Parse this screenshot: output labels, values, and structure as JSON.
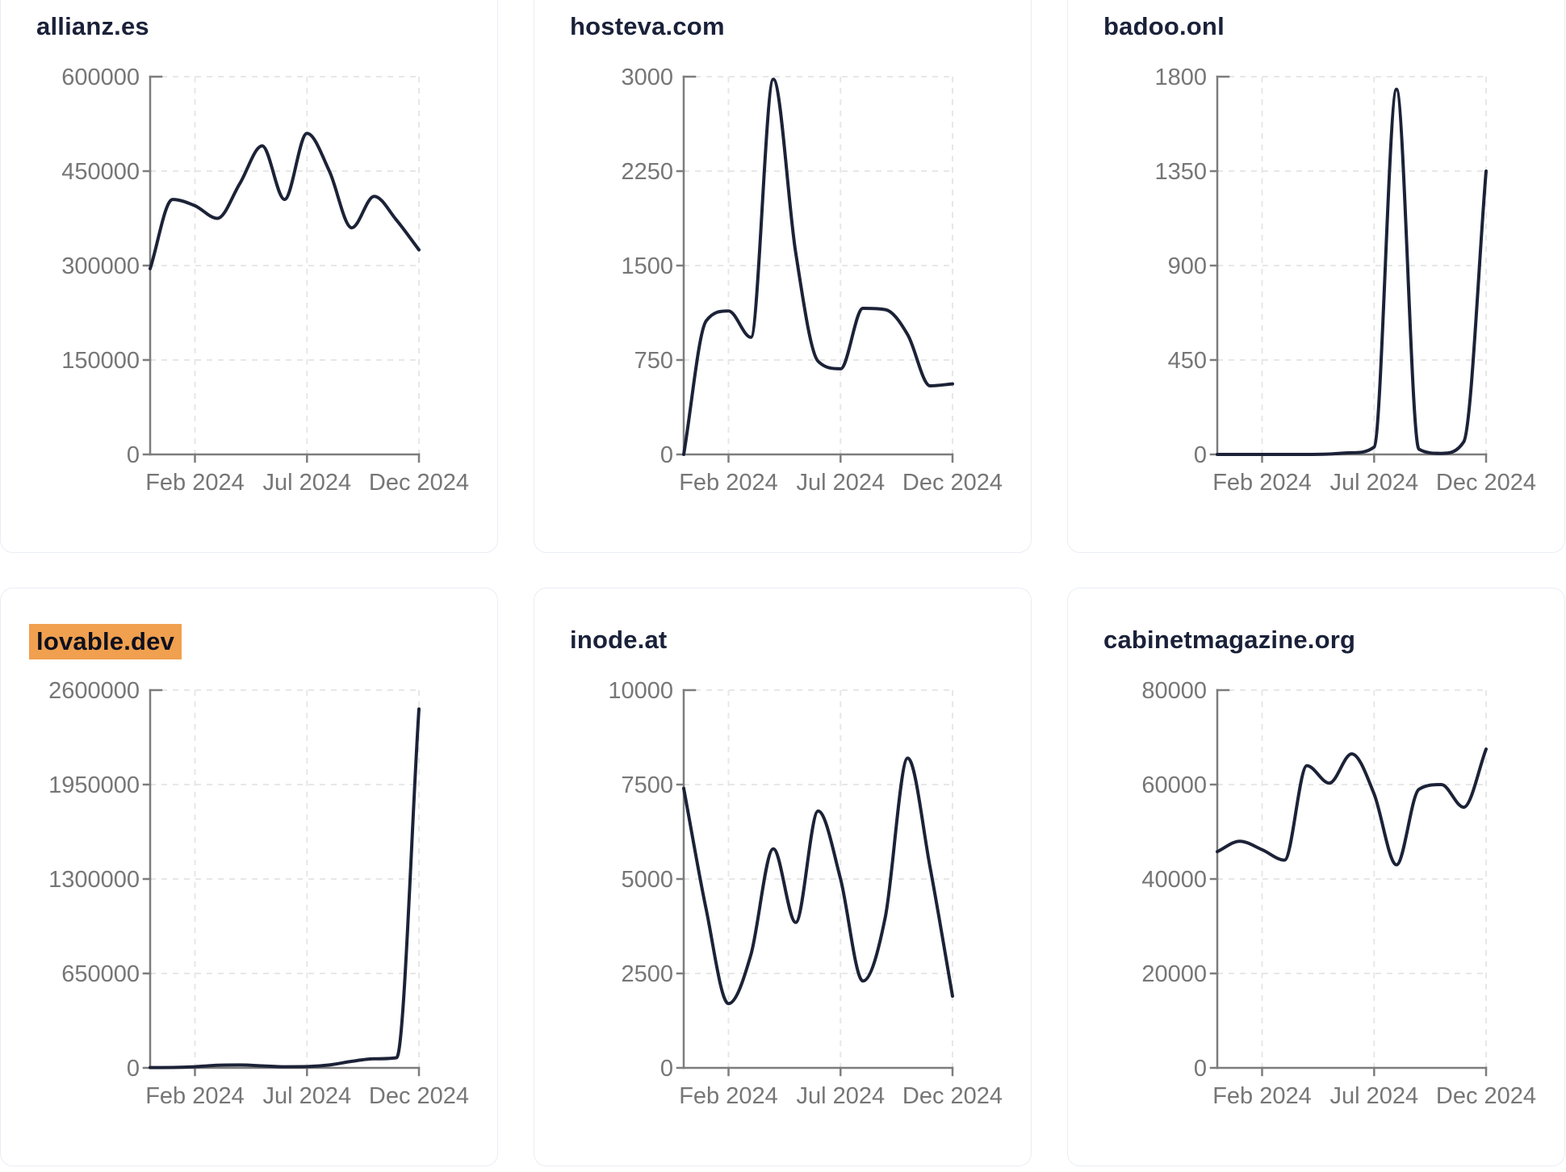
{
  "style": {
    "line_color": "#1c2237",
    "title_color": "#1a2139",
    "axis_color": "#7d7d7d",
    "tick_label_color": "#767676",
    "grid_color": "#e7e7e7",
    "card_border": "#e9edf4",
    "card_bg": "#ffffff",
    "highlight_bg": "#f0a04e"
  },
  "months": [
    "Dec 2023",
    "Jan 2024",
    "Feb 2024",
    "Mar 2024",
    "Apr 2024",
    "May 2024",
    "Jun 2024",
    "Jul 2024",
    "Aug 2024",
    "Sep 2024",
    "Oct 2024",
    "Nov 2024",
    "Dec 2024"
  ],
  "chart_data": [
    {
      "type": "line",
      "title": "allianz.es",
      "highlighted": false,
      "x": [
        "Dec 2023",
        "Jan 2024",
        "Feb 2024",
        "Mar 2024",
        "Apr 2024",
        "May 2024",
        "Jun 2024",
        "Jul 2024",
        "Aug 2024",
        "Sep 2024",
        "Oct 2024",
        "Nov 2024",
        "Dec 2024"
      ],
      "values": [
        295000,
        405000,
        395000,
        375000,
        430000,
        490000,
        405000,
        510000,
        450000,
        360000,
        410000,
        372000,
        325000
      ],
      "ylim": [
        0,
        600000
      ],
      "y_ticks": [
        0,
        150000,
        300000,
        450000,
        600000
      ],
      "x_tick_labels": [
        "Feb 2024",
        "Jul 2024",
        "Dec 2024"
      ],
      "x_tick_indices": [
        2,
        7,
        12
      ],
      "grid": "dashed",
      "legend": "none"
    },
    {
      "type": "line",
      "title": "hosteva.com",
      "highlighted": false,
      "x": [
        "Dec 2023",
        "Jan 2024",
        "Feb 2024",
        "Mar 2024",
        "Apr 2024",
        "May 2024",
        "Jun 2024",
        "Jul 2024",
        "Aug 2024",
        "Sep 2024",
        "Oct 2024",
        "Nov 2024",
        "Dec 2024"
      ],
      "values": [
        0,
        1060,
        1140,
        930,
        2980,
        1600,
        740,
        680,
        1160,
        1150,
        950,
        545,
        560
      ],
      "ylim": [
        0,
        3000
      ],
      "y_ticks": [
        0,
        750,
        1500,
        2250,
        3000
      ],
      "x_tick_labels": [
        "Feb 2024",
        "Jul 2024",
        "Dec 2024"
      ],
      "x_tick_indices": [
        2,
        7,
        12
      ],
      "grid": "dashed",
      "legend": "none"
    },
    {
      "type": "line",
      "title": "badoo.onl",
      "highlighted": false,
      "x": [
        "Dec 2023",
        "Jan 2024",
        "Feb 2024",
        "Mar 2024",
        "Apr 2024",
        "May 2024",
        "Jun 2024",
        "Jul 2024",
        "Aug 2024",
        "Sep 2024",
        "Oct 2024",
        "Nov 2024",
        "Dec 2024"
      ],
      "values": [
        0,
        0,
        0,
        0,
        0,
        2,
        8,
        35,
        1740,
        25,
        5,
        60,
        1350
      ],
      "ylim": [
        0,
        1800
      ],
      "y_ticks": [
        0,
        450,
        900,
        1350,
        1800
      ],
      "x_tick_labels": [
        "Feb 2024",
        "Jul 2024",
        "Dec 2024"
      ],
      "x_tick_indices": [
        2,
        7,
        12
      ],
      "grid": "dashed",
      "legend": "none"
    },
    {
      "type": "line",
      "title": "lovable.dev",
      "highlighted": true,
      "x": [
        "Dec 2023",
        "Jan 2024",
        "Feb 2024",
        "Mar 2024",
        "Apr 2024",
        "May 2024",
        "Jun 2024",
        "Jul 2024",
        "Aug 2024",
        "Sep 2024",
        "Oct 2024",
        "Nov 2024",
        "Dec 2024"
      ],
      "values": [
        2000,
        3000,
        8000,
        18000,
        20000,
        14000,
        8000,
        9000,
        20000,
        45000,
        62000,
        70000,
        2470000
      ],
      "ylim": [
        0,
        2600000
      ],
      "y_ticks": [
        0,
        650000,
        1300000,
        1950000,
        2600000
      ],
      "x_tick_labels": [
        "Feb 2024",
        "Jul 2024",
        "Dec 2024"
      ],
      "x_tick_indices": [
        2,
        7,
        12
      ],
      "grid": "dashed",
      "legend": "none"
    },
    {
      "type": "line",
      "title": "inode.at",
      "highlighted": false,
      "x": [
        "Dec 2023",
        "Jan 2024",
        "Feb 2024",
        "Mar 2024",
        "Apr 2024",
        "May 2024",
        "Jun 2024",
        "Jul 2024",
        "Aug 2024",
        "Sep 2024",
        "Oct 2024",
        "Nov 2024",
        "Dec 2024"
      ],
      "values": [
        7400,
        4200,
        1700,
        3000,
        5800,
        3850,
        6800,
        5000,
        2300,
        4000,
        8200,
        5300,
        1900
      ],
      "ylim": [
        0,
        10000
      ],
      "y_ticks": [
        0,
        2500,
        5000,
        7500,
        10000
      ],
      "x_tick_labels": [
        "Feb 2024",
        "Jul 2024",
        "Dec 2024"
      ],
      "x_tick_indices": [
        2,
        7,
        12
      ],
      "grid": "dashed",
      "legend": "none"
    },
    {
      "type": "line",
      "title": "cabinetmagazine.org",
      "highlighted": false,
      "x": [
        "Dec 2023",
        "Jan 2024",
        "Feb 2024",
        "Mar 2024",
        "Apr 2024",
        "May 2024",
        "Jun 2024",
        "Jul 2024",
        "Aug 2024",
        "Sep 2024",
        "Oct 2024",
        "Nov 2024",
        "Dec 2024"
      ],
      "values": [
        45800,
        48000,
        46200,
        44000,
        64000,
        60300,
        66500,
        58000,
        43000,
        59000,
        60000,
        55200,
        67500
      ],
      "ylim": [
        0,
        80000
      ],
      "y_ticks": [
        0,
        20000,
        40000,
        60000,
        80000
      ],
      "x_tick_labels": [
        "Feb 2024",
        "Jul 2024",
        "Dec 2024"
      ],
      "x_tick_indices": [
        2,
        7,
        12
      ],
      "grid": "dashed",
      "legend": "none"
    }
  ]
}
